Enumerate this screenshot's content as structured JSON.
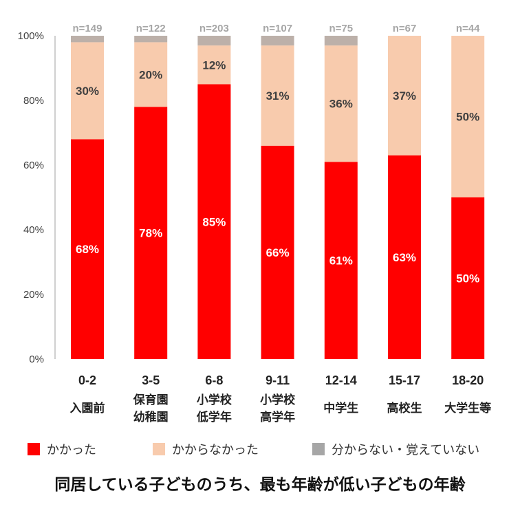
{
  "chart_data": {
    "type": "bar",
    "stacked": true,
    "title": "同居している子どものうち、最も年齢が低い子どもの年齢",
    "categories": [
      "0-2",
      "3-5",
      "6-8",
      "9-11",
      "12-14",
      "15-17",
      "18-20"
    ],
    "category_sublabels": [
      [
        "入園前"
      ],
      [
        "保育園",
        "幼稚園"
      ],
      [
        "小学校",
        "低学年"
      ],
      [
        "小学校",
        "高学年"
      ],
      [
        "中学生"
      ],
      [
        "高校生"
      ],
      [
        "大学生等"
      ]
    ],
    "sample_sizes": [
      "n=149",
      "n=122",
      "n=203",
      "n=107",
      "n=75",
      "n=67",
      "n=44"
    ],
    "series": [
      {
        "name": "かかった",
        "color": "#ff0000",
        "label_color": "#ffffff",
        "values": [
          68,
          78,
          85,
          66,
          61,
          63,
          50
        ],
        "labels": [
          "68%",
          "78%",
          "85%",
          "66%",
          "61%",
          "63%",
          "50%"
        ]
      },
      {
        "name": "かからなかった",
        "color": "#f8cbad",
        "label_color": "#404040",
        "values": [
          30,
          20,
          12,
          31,
          36,
          37,
          50
        ],
        "labels": [
          "30%",
          "20%",
          "12%",
          "31%",
          "36%",
          "37%",
          "50%"
        ]
      },
      {
        "name": "分からない・覚えていない",
        "color": "#bcb0a9",
        "legend_color": "#a6a6a6",
        "values": [
          2,
          2,
          3,
          3,
          3,
          0,
          0
        ]
      }
    ],
    "yticks": [
      "0%",
      "20%",
      "40%",
      "60%",
      "80%",
      "100%"
    ],
    "ylim": [
      0,
      100
    ],
    "grid": false,
    "legend_position": "bottom"
  }
}
